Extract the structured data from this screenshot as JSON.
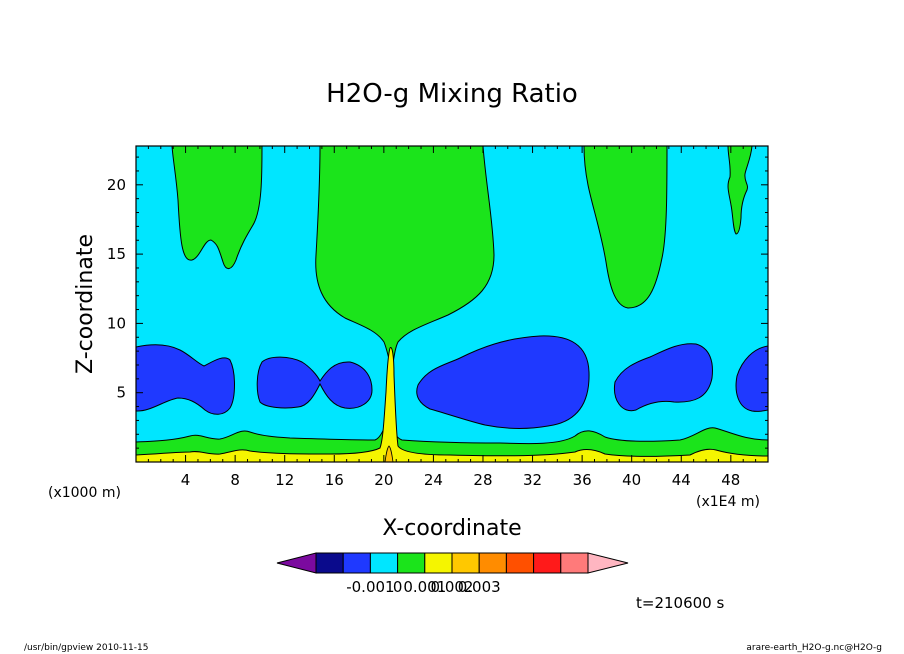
{
  "chart_data": {
    "type": "contour",
    "title": "H2O-g Mixing Ratio",
    "xlabel": "X-coordinate",
    "ylabel": "Z-coordinate",
    "x_unit_note": "(x1E4 m)",
    "y_unit_note": "(x1000 m)",
    "xlim": [
      0,
      51
    ],
    "ylim": [
      0,
      22.8
    ],
    "xticks": [
      4,
      8,
      12,
      16,
      20,
      24,
      28,
      32,
      36,
      40,
      44,
      48
    ],
    "yticks": [
      5,
      10,
      15,
      20
    ],
    "time_label": "t=210600 s",
    "colorbar": {
      "tick_labels": [
        "-0.001",
        "0",
        "0.001",
        "0.002",
        "0.003"
      ],
      "colors": [
        "#7b0a9f",
        "#0a0a8c",
        "#1f39ff",
        "#00e6ff",
        "#1be41b",
        "#f5f500",
        "#ffc800",
        "#ff8c00",
        "#ff5000",
        "#ff1a1a",
        "#ff7a7a",
        "#ffb6c1"
      ]
    },
    "regions": [
      {
        "value_band": "0 to 0.001",
        "color": "#1be41b",
        "description": "upper plumes and near-surface layer"
      },
      {
        "value_band": "0.001 to 0.002",
        "color": "#f5f500",
        "description": "surface layer and narrow column near x=20.5"
      },
      {
        "value_band": "-0.001 to 0",
        "color": "#00e6ff",
        "description": "background"
      },
      {
        "value_band": "-0.002 to -0.001",
        "color": "#1f39ff",
        "description": "mid-level pockets around z=4-8"
      }
    ]
  },
  "footer": {
    "left": "/usr/bin/gpview   2010-11-15",
    "right": "arare-earth_H2O-g.nc@H2O-g"
  }
}
